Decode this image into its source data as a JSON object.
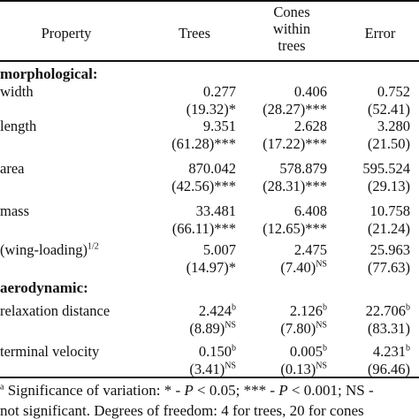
{
  "header": {
    "property": "Property",
    "trees": "Trees",
    "cones_line1": "Cones",
    "cones_line2": "within",
    "cones_line3": "trees",
    "error": "Error"
  },
  "sections": {
    "morphological": "morphological:",
    "aerodynamic": "aerodynamic:"
  },
  "rows": [
    {
      "label": "width",
      "label_sup": "",
      "trees": "0.277",
      "trees_sup": "",
      "cones": "0.406",
      "cones_sup": "",
      "error": "0.752",
      "error_sup": "",
      "p_trees": "(19.32)*",
      "p_trees_sup": "",
      "p_cones": "(28.27)***",
      "p_cones_sup": "",
      "p_error": "(52.41)"
    },
    {
      "label": "length",
      "label_sup": "",
      "trees": "9.351",
      "trees_sup": "",
      "cones": "2.628",
      "cones_sup": "",
      "error": "3.280",
      "error_sup": "",
      "p_trees": "(61.28)***",
      "p_trees_sup": "",
      "p_cones": "(17.22)***",
      "p_cones_sup": "",
      "p_error": "(21.50)"
    },
    {
      "label": "area",
      "label_sup": "",
      "trees": "870.042",
      "trees_sup": "",
      "cones": "578.879",
      "cones_sup": "",
      "error": "595.524",
      "error_sup": "",
      "p_trees": "(42.56)***",
      "p_trees_sup": "",
      "p_cones": "(28.31)***",
      "p_cones_sup": "",
      "p_error": "(29.13)"
    },
    {
      "label": "mass",
      "label_sup": "",
      "trees": "33.481",
      "trees_sup": "",
      "cones": "6.408",
      "cones_sup": "",
      "error": "10.758",
      "error_sup": "",
      "p_trees": "(66.11)***",
      "p_trees_sup": "",
      "p_cones": "(12.65)***",
      "p_cones_sup": "",
      "p_error": "(21.24)"
    },
    {
      "label": "(wing-loading)",
      "label_sup": "1/2",
      "trees": "5.007",
      "trees_sup": "",
      "cones": "2.475",
      "cones_sup": "",
      "error": "25.963",
      "error_sup": "",
      "p_trees": "(14.97)*",
      "p_trees_sup": "",
      "p_cones": "(7.40)",
      "p_cones_sup": "NS",
      "p_error": "(77.63)"
    },
    {
      "label": "relaxation distance",
      "label_sup": "",
      "trees": "2.424",
      "trees_sup": "b",
      "cones": "2.126",
      "cones_sup": "b",
      "error": "22.706",
      "error_sup": "b",
      "p_trees": "(8.89)",
      "p_trees_sup": "NS",
      "p_cones": "(7.80)",
      "p_cones_sup": "NS",
      "p_error": "(83.31)"
    },
    {
      "label": "terminal velocity",
      "label_sup": "",
      "trees": "0.150",
      "trees_sup": "b",
      "cones": "0.005",
      "cones_sup": "b",
      "error": "4.231",
      "error_sup": "b",
      "p_trees": "(3.41)",
      "p_trees_sup": "NS",
      "p_cones": "(0.13)",
      "p_cones_sup": "NS",
      "p_error": "(96.46)"
    }
  ],
  "footnote": {
    "marker": "a",
    "line1_a": " Significance of variation: * - ",
    "p1": "P",
    "line1_b": " < 0.05; *** - ",
    "p2": "P",
    "line1_c": " < 0.001; NS -",
    "line2": "not significant. Degrees of freedom: 4 for trees, 20 for cones"
  }
}
